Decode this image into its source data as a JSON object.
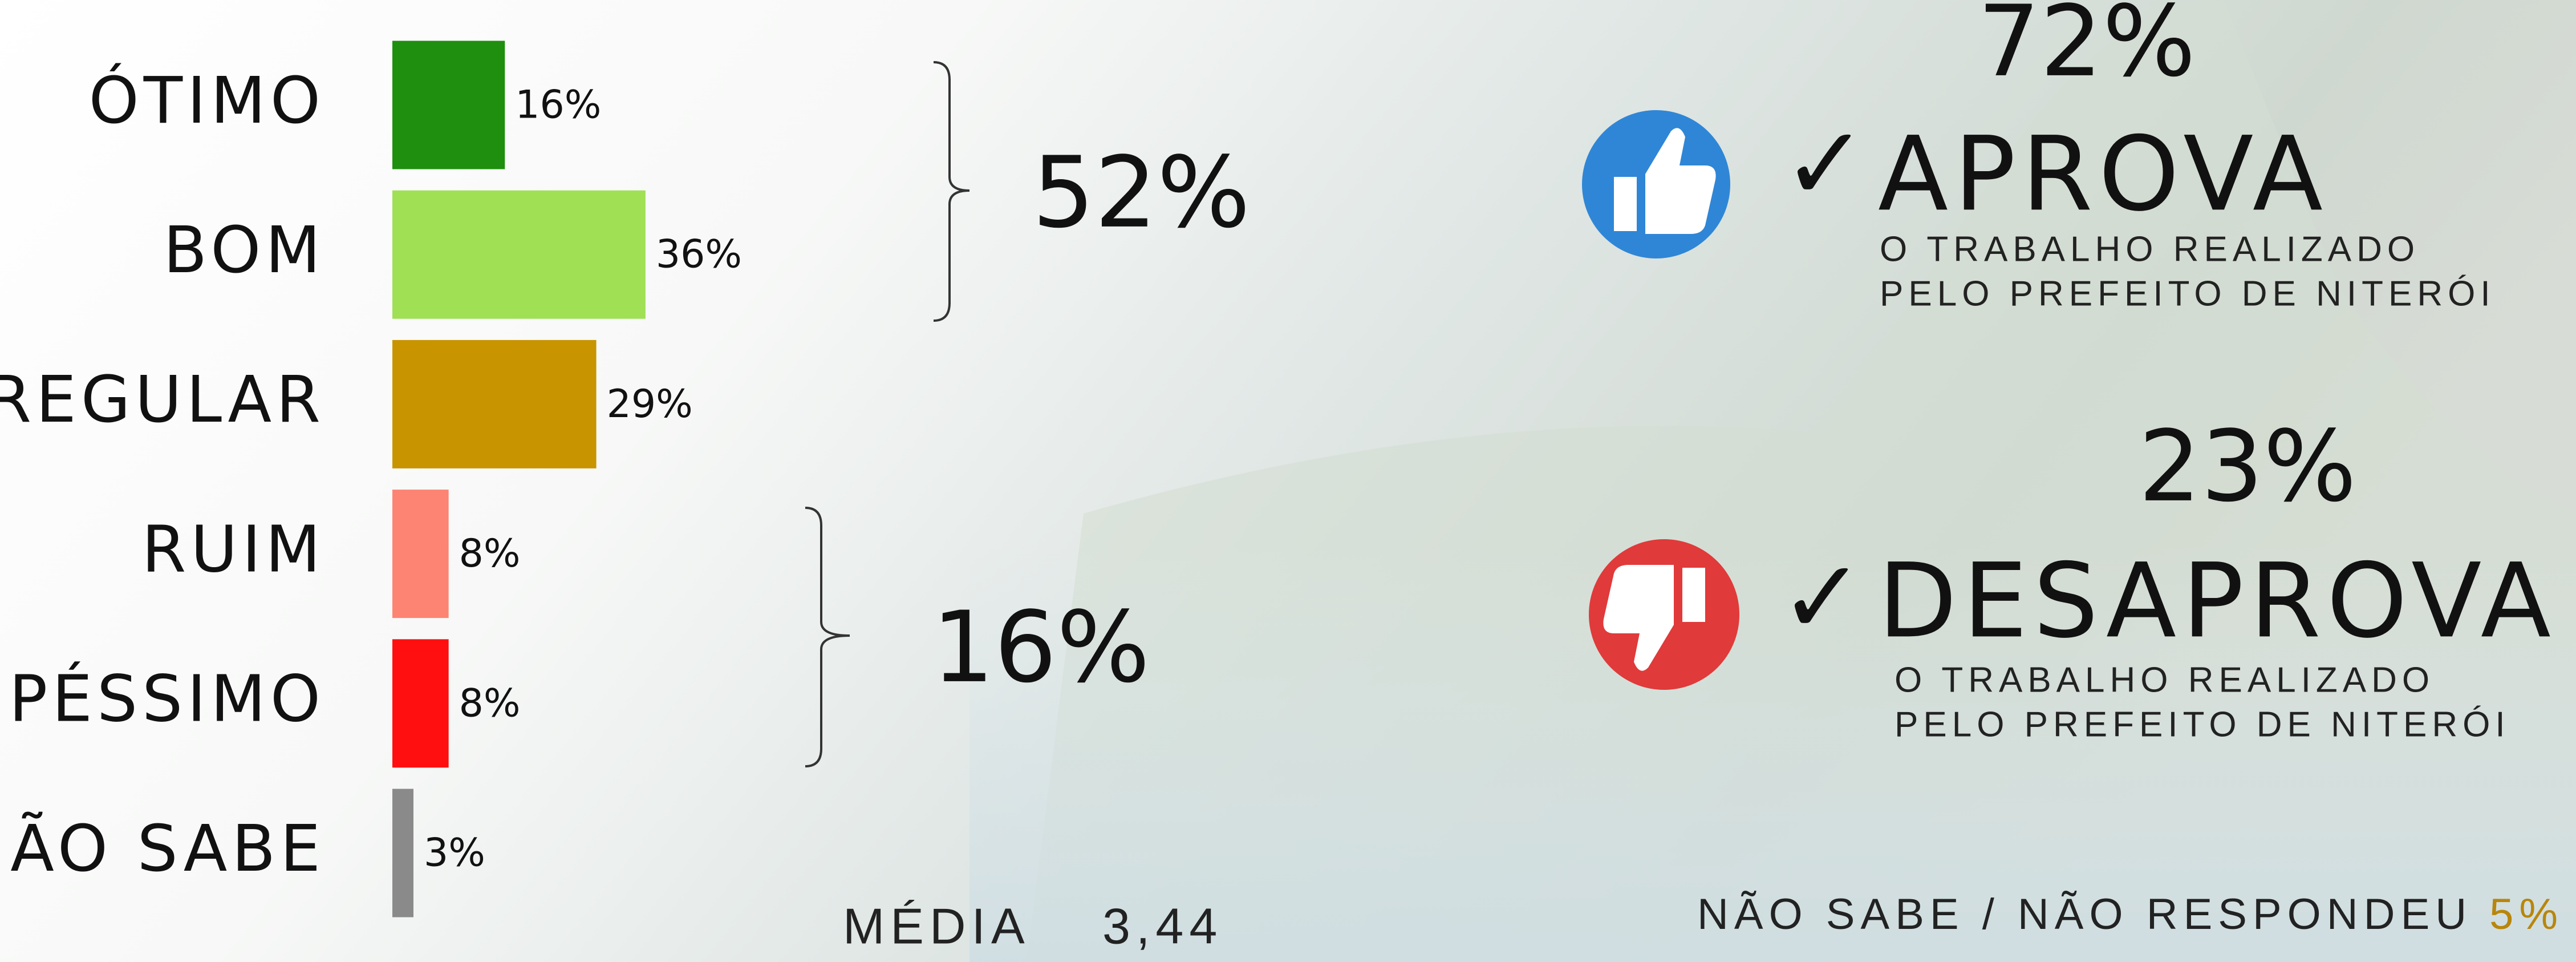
{
  "chart_data": {
    "type": "bar",
    "orientation": "horizontal",
    "categories": [
      "ÓTIMO",
      "BOM",
      "REGULAR",
      "RUIM",
      "PÉSSIMO",
      "NÃO SABE"
    ],
    "values": [
      16,
      36,
      29,
      8,
      8,
      3
    ],
    "value_labels": [
      "16%",
      "36%",
      "29%",
      "8%",
      "8%",
      "3%"
    ],
    "colors": [
      "#1e8f0e",
      "#9fe055",
      "#c89400",
      "#fd8473",
      "#ff0f0f",
      "#8a8a8a"
    ]
  },
  "groups": [
    {
      "label": "52%"
    },
    {
      "label": "16%"
    }
  ],
  "average": {
    "label": "MÉDIA",
    "value": "3,44"
  },
  "approve": {
    "percent": "72%",
    "check": "✓",
    "title": "APROVA",
    "lines": [
      "O TRABALHO REALIZADO",
      "PELO PREFEITO DE NITERÓI"
    ]
  },
  "disapprove": {
    "percent": "23%",
    "check": "✓",
    "title": "DESAPROVA",
    "lines": [
      "O TRABALHO REALIZADO",
      "PELO PREFEITO DE NITERÓI"
    ]
  },
  "unknown": {
    "label": "NÃO SABE / NÃO RESPONDEU",
    "value": "5%"
  }
}
